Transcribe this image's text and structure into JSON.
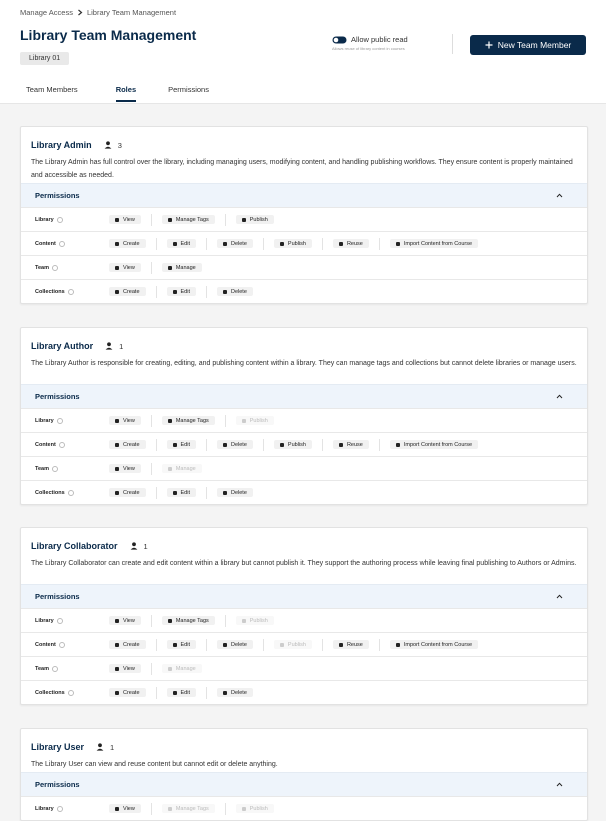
{
  "breadcrumb": [
    "Manage Access",
    "Library Team Management"
  ],
  "header": {
    "title": "Library Team Management",
    "badge": "Library 01",
    "toggle_label": "Allow public read",
    "toggle_on": true,
    "toggle_hint": "Allows reuse of library content in courses",
    "button": "New Team Member"
  },
  "tabs": {
    "items": [
      "Team Members",
      "Roles",
      "Permissions"
    ],
    "active": 1
  },
  "roles": [
    {
      "name": "Library Admin",
      "count": "3",
      "description": "The Library Admin has full control over the library, including managing users, modifying content, and handling publishing workflows. They ensure content is properly maintained and accessible as needed.",
      "permissions_title": "Permissions",
      "rows": [
        {
          "label": "Library",
          "actions": [
            {
              "label": "View",
              "enabled": true
            },
            {
              "label": "Manage Tags",
              "enabled": true
            },
            {
              "label": "Publish",
              "enabled": true
            }
          ]
        },
        {
          "label": "Content",
          "actions": [
            {
              "label": "Create",
              "enabled": true
            },
            {
              "label": "Edit",
              "enabled": true
            },
            {
              "label": "Delete",
              "enabled": true
            },
            {
              "label": "Publish",
              "enabled": true
            },
            {
              "label": "Reuse",
              "enabled": true
            },
            {
              "label": "Import Content from Course",
              "enabled": true
            }
          ]
        },
        {
          "label": "Team",
          "actions": [
            {
              "label": "View",
              "enabled": true
            },
            {
              "label": "Manage",
              "enabled": true
            }
          ]
        },
        {
          "label": "Collections",
          "actions": [
            {
              "label": "Create",
              "enabled": true
            },
            {
              "label": "Edit",
              "enabled": true
            },
            {
              "label": "Delete",
              "enabled": true
            }
          ]
        }
      ]
    },
    {
      "name": "Library Author",
      "count": "1",
      "description": "The Library Author is responsible for creating, editing, and publishing content within a library. They can manage tags and collections but cannot delete libraries or manage users.",
      "permissions_title": "Permissions",
      "rows": [
        {
          "label": "Library",
          "actions": [
            {
              "label": "View",
              "enabled": true
            },
            {
              "label": "Manage Tags",
              "enabled": true
            },
            {
              "label": "Publish",
              "enabled": false
            }
          ]
        },
        {
          "label": "Content",
          "actions": [
            {
              "label": "Create",
              "enabled": true
            },
            {
              "label": "Edit",
              "enabled": true
            },
            {
              "label": "Delete",
              "enabled": true
            },
            {
              "label": "Publish",
              "enabled": true
            },
            {
              "label": "Reuse",
              "enabled": true
            },
            {
              "label": "Import Content from Course",
              "enabled": true
            }
          ]
        },
        {
          "label": "Team",
          "actions": [
            {
              "label": "View",
              "enabled": true
            },
            {
              "label": "Manage",
              "enabled": false
            }
          ]
        },
        {
          "label": "Collections",
          "actions": [
            {
              "label": "Create",
              "enabled": true
            },
            {
              "label": "Edit",
              "enabled": true
            },
            {
              "label": "Delete",
              "enabled": true
            }
          ]
        }
      ]
    },
    {
      "name": "Library Collaborator",
      "count": "1",
      "description": "The Library Collaborator can create and edit content within a library but cannot publish it. They support the authoring process while leaving final publishing to Authors or Admins.",
      "permissions_title": "Permissions",
      "rows": [
        {
          "label": "Library",
          "actions": [
            {
              "label": "View",
              "enabled": true
            },
            {
              "label": "Manage Tags",
              "enabled": true
            },
            {
              "label": "Publish",
              "enabled": false
            }
          ]
        },
        {
          "label": "Content",
          "actions": [
            {
              "label": "Create",
              "enabled": true
            },
            {
              "label": "Edit",
              "enabled": true
            },
            {
              "label": "Delete",
              "enabled": true
            },
            {
              "label": "Publish",
              "enabled": false
            },
            {
              "label": "Reuse",
              "enabled": true
            },
            {
              "label": "Import Content from Course",
              "enabled": true
            }
          ]
        },
        {
          "label": "Team",
          "actions": [
            {
              "label": "View",
              "enabled": true
            },
            {
              "label": "Manage",
              "enabled": false
            }
          ]
        },
        {
          "label": "Collections",
          "actions": [
            {
              "label": "Create",
              "enabled": true
            },
            {
              "label": "Edit",
              "enabled": true
            },
            {
              "label": "Delete",
              "enabled": true
            }
          ]
        }
      ]
    },
    {
      "name": "Library User",
      "count": "1",
      "description": "The Library User can view and reuse content but cannot edit or delete anything.",
      "permissions_title": "Permissions",
      "rows": [
        {
          "label": "Library",
          "actions": [
            {
              "label": "View",
              "enabled": true
            },
            {
              "label": "Manage Tags",
              "enabled": false
            },
            {
              "label": "Publish",
              "enabled": false
            }
          ]
        }
      ]
    }
  ]
}
